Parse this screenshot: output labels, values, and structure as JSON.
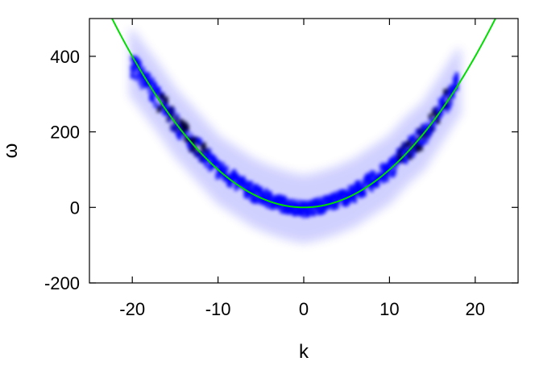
{
  "chart_data": {
    "type": "heatmap",
    "title": "",
    "xlabel": "k",
    "ylabel": "ω",
    "xlim": [
      -25,
      25
    ],
    "ylim": [
      -200,
      500
    ],
    "x_ticks": [
      -20,
      -10,
      0,
      10,
      20
    ],
    "y_ticks": [
      -200,
      0,
      200,
      400
    ],
    "x_tick_labels": [
      "-20",
      "-10",
      "0",
      "10",
      "20"
    ],
    "y_tick_labels": [
      "-200",
      "0",
      "200",
      "400"
    ],
    "grid": false,
    "legend": "none",
    "curve": {
      "description_color": "#00dd00",
      "formula": "omega = k^2",
      "x": [
        -22.4,
        -20,
        -15,
        -10,
        -5,
        0,
        5,
        10,
        15,
        20,
        22.4
      ],
      "y": [
        502,
        400,
        225,
        100,
        25,
        0,
        25,
        100,
        225,
        400,
        502
      ]
    },
    "density_band": {
      "color": "#0000ff",
      "dense_color": "#000033",
      "x_range": [
        -20,
        18
      ],
      "center_x": [
        -20,
        -17,
        -15,
        -12,
        -10,
        -8,
        -6,
        -4,
        -2,
        -1,
        0,
        1,
        2,
        4,
        6,
        8,
        10,
        12,
        14,
        16,
        18
      ],
      "center_y": [
        380,
        290,
        225,
        150,
        100,
        70,
        40,
        20,
        5,
        0,
        -5,
        0,
        5,
        20,
        40,
        70,
        100,
        150,
        190,
        260,
        330
      ]
    }
  }
}
